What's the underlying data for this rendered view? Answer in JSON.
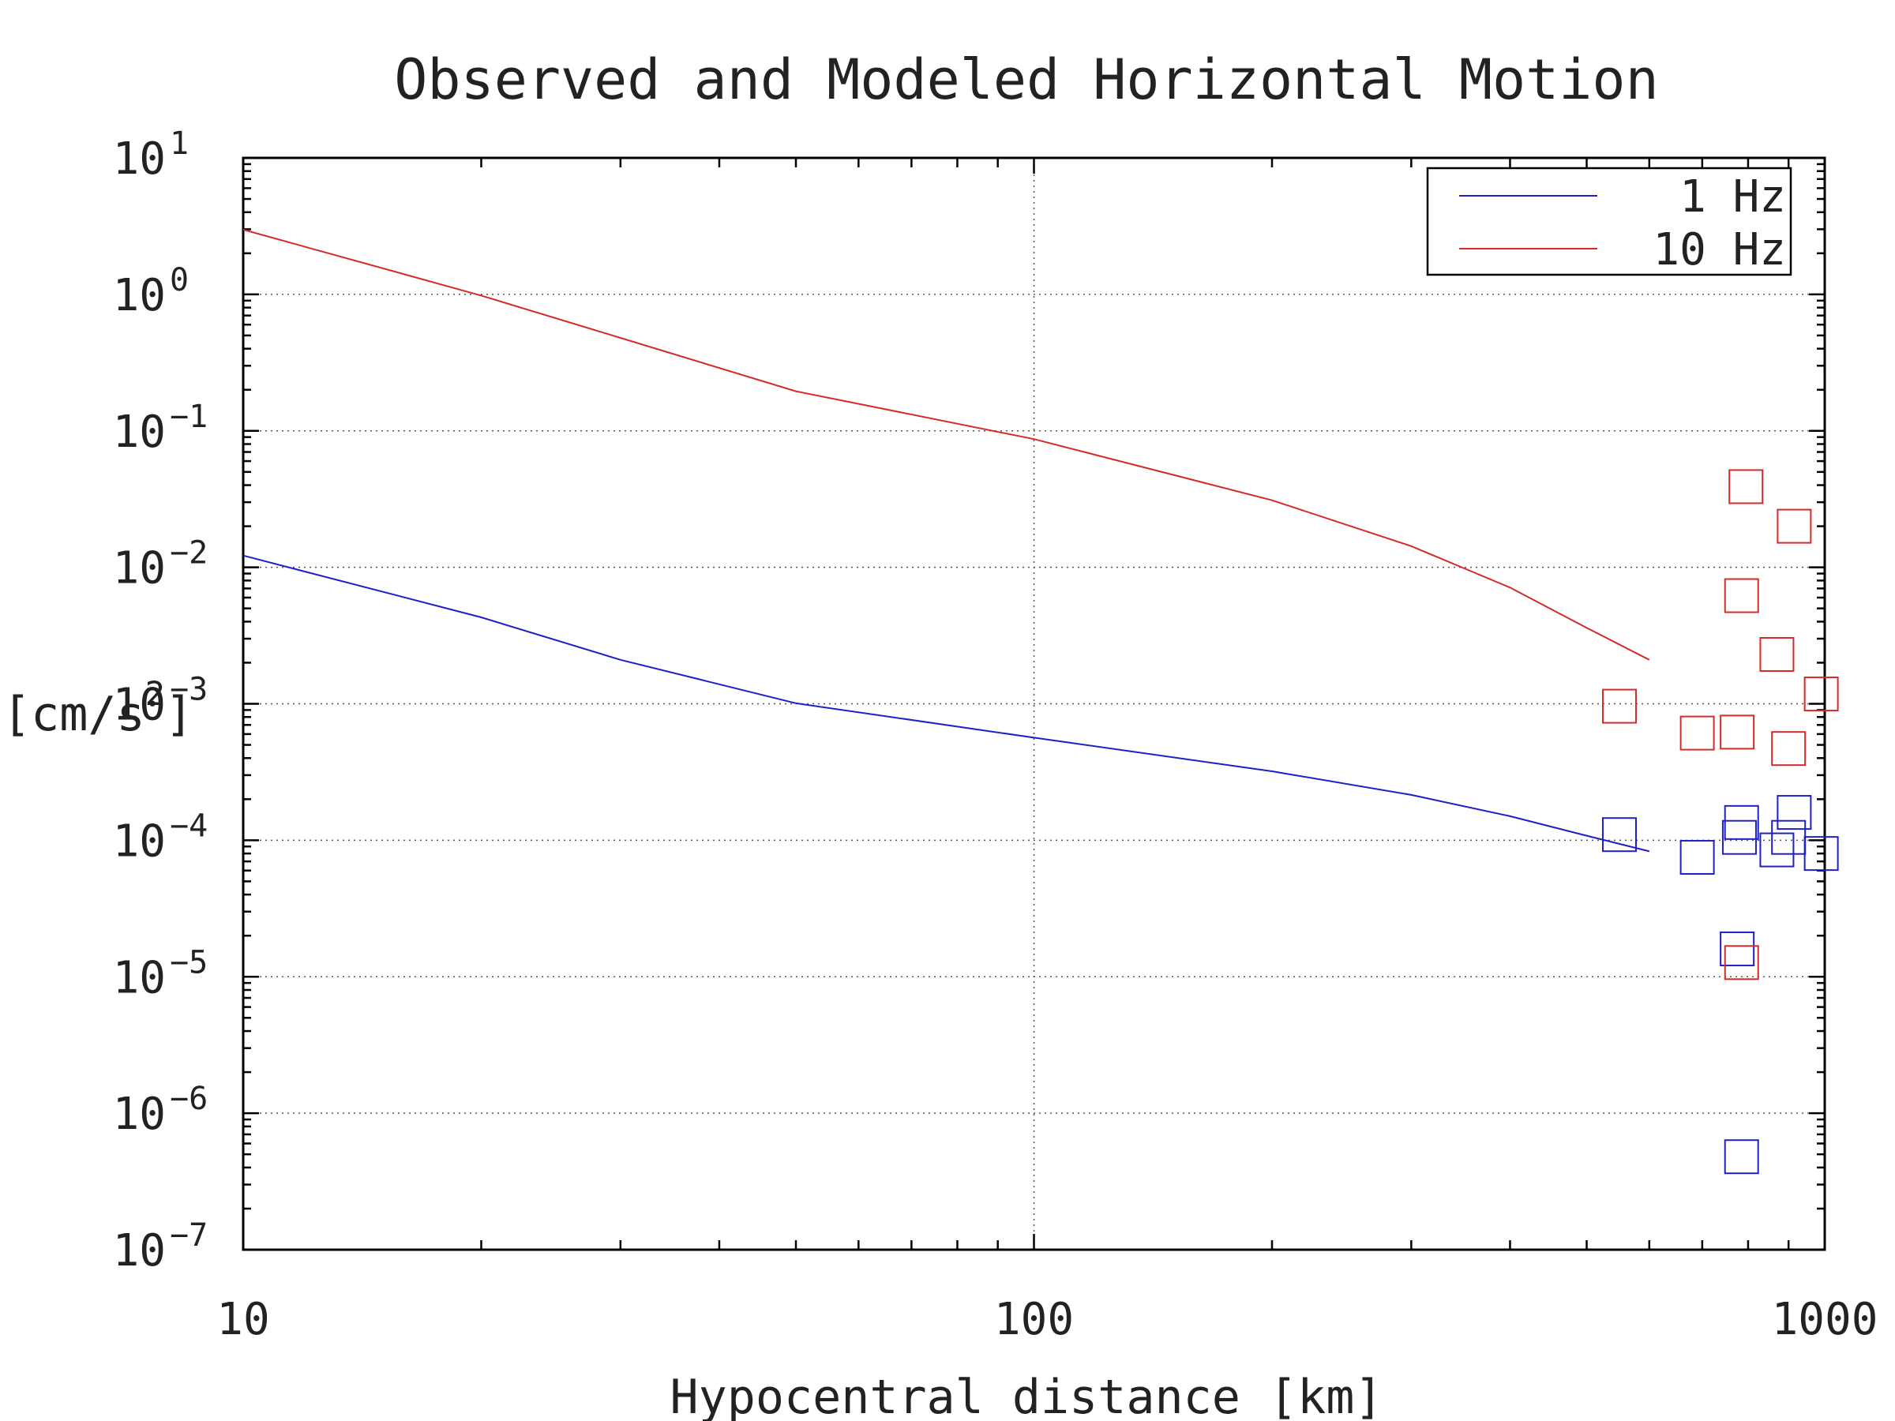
{
  "chart_data": {
    "type": "line",
    "title": "Observed and Modeled Horizontal Motion",
    "xlabel": "Hypocentral distance [km]",
    "ylabel": "Acceleration [cm/s",
    "ylabel_sup": "2",
    "ylabel_close": "]",
    "x_scale": "log",
    "y_scale": "log",
    "xlim": [
      10,
      1000
    ],
    "ylim": [
      1e-07,
      10
    ],
    "x_ticks": [
      {
        "value": 10,
        "label": "10"
      },
      {
        "value": 100,
        "label": "100"
      },
      {
        "value": 1000,
        "label": "1000"
      }
    ],
    "y_ticks": [
      {
        "value": 10,
        "base": "10",
        "exp": "1"
      },
      {
        "value": 1,
        "base": "10",
        "exp": "0"
      },
      {
        "value": 0.1,
        "base": "10",
        "exp": "−1"
      },
      {
        "value": 0.01,
        "base": "10",
        "exp": "−2"
      },
      {
        "value": 0.001,
        "base": "10",
        "exp": "−3"
      },
      {
        "value": 0.0001,
        "base": "10",
        "exp": "−4"
      },
      {
        "value": 1e-05,
        "base": "10",
        "exp": "−5"
      },
      {
        "value": 1e-06,
        "base": "10",
        "exp": "−6"
      },
      {
        "value": 1e-07,
        "base": "10",
        "exp": "−7"
      }
    ],
    "grid": "dotted, major decades",
    "legend_position": "top-right",
    "series": [
      {
        "name": "1 Hz",
        "color": "#1f1fc8",
        "line": {
          "x": [
            10,
            20,
            30,
            50,
            100,
            200,
            300,
            400,
            500,
            600
          ],
          "y": [
            0.0122,
            0.0043,
            0.0021,
            0.00101,
            0.000565,
            0.00032,
            0.000215,
            0.00015,
            0.000108,
            8.3e-05
          ]
        },
        "points": {
          "x": [
            550,
            690,
            775,
            780,
            785,
            870,
            900,
            915,
            990,
            785
          ],
          "y": [
            0.00011,
            7.5e-05,
            1.6e-05,
            0.000105,
            0.000135,
            8.5e-05,
            0.000105,
            0.00016,
            8e-05,
            4.8e-07
          ]
        }
      },
      {
        "name": "10 Hz",
        "color": "#d42a2a",
        "line": {
          "x": [
            10,
            20,
            30,
            50,
            100,
            200,
            300,
            400,
            500,
            600
          ],
          "y": [
            2.98,
            0.98,
            0.48,
            0.195,
            0.087,
            0.031,
            0.0143,
            0.0071,
            0.0036,
            0.0021
          ]
        },
        "points": {
          "x": [
            550,
            690,
            775,
            785,
            795,
            870,
            900,
            915,
            990,
            785
          ],
          "y": [
            0.00096,
            0.00061,
            0.00062,
            0.0062,
            0.039,
            0.0023,
            0.00047,
            0.02,
            0.00118,
            1.27e-05
          ]
        }
      }
    ]
  }
}
